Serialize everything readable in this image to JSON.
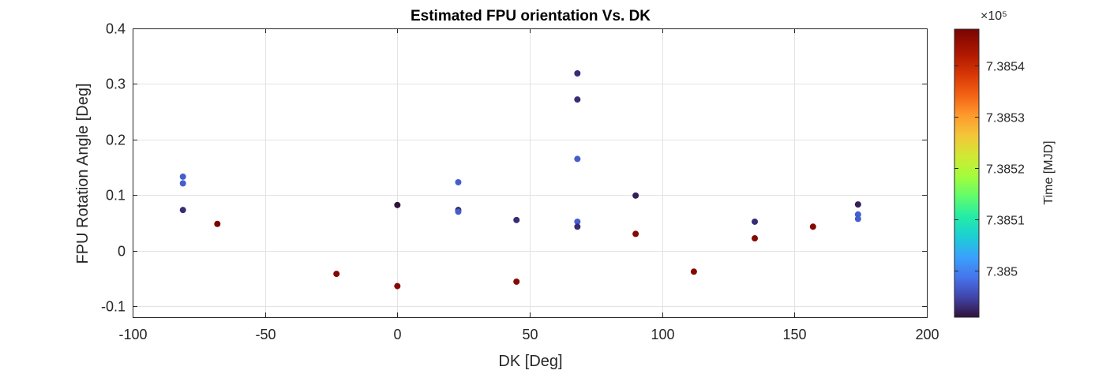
{
  "chart_data": {
    "type": "scatter",
    "title": "Estimated FPU orientation Vs. DK",
    "xlabel": "DK [Deg]",
    "ylabel": "FPU Rotation Angle [Deg]",
    "xlim": [
      -100,
      200
    ],
    "ylim": [
      -0.12,
      0.4
    ],
    "xticks": [
      -100,
      -50,
      0,
      50,
      100,
      150,
      200
    ],
    "xtick_labels": [
      "-100",
      "-50",
      "0",
      "50",
      "100",
      "150",
      "200"
    ],
    "yticks": [
      -0.1,
      0,
      0.1,
      0.2,
      0.3,
      0.4
    ],
    "ytick_labels": [
      "-0.1",
      "0",
      "0.1",
      "0.2",
      "0.3",
      "0.4"
    ],
    "grid": true,
    "colorbar": {
      "label": "Time [MJD]",
      "exponent_label": "×10⁵",
      "colormap": "turbo",
      "clim": [
        7.38491,
        7.38547
      ],
      "ticks": [
        7.385,
        7.3851,
        7.3852,
        7.3853,
        7.3854
      ],
      "tick_labels": [
        "7.385",
        "7.3851",
        "7.3852",
        "7.3853",
        "7.3854"
      ]
    },
    "points": [
      {
        "x": -81,
        "y": 0.133,
        "c": 7.38497
      },
      {
        "x": -81,
        "y": 0.121,
        "c": 7.38497
      },
      {
        "x": -81,
        "y": 0.073,
        "c": 7.38493
      },
      {
        "x": -68,
        "y": 0.048,
        "c": 7.38547
      },
      {
        "x": -23,
        "y": -0.042,
        "c": 7.38546
      },
      {
        "x": 0,
        "y": 0.082,
        "c": 7.38491
      },
      {
        "x": 0,
        "y": -0.064,
        "c": 7.38546
      },
      {
        "x": 23,
        "y": 0.123,
        "c": 7.38497
      },
      {
        "x": 23,
        "y": 0.073,
        "c": 7.38492
      },
      {
        "x": 23,
        "y": 0.07,
        "c": 7.38497
      },
      {
        "x": 45,
        "y": 0.055,
        "c": 7.38493
      },
      {
        "x": 45,
        "y": -0.056,
        "c": 7.38546
      },
      {
        "x": 68,
        "y": 0.319,
        "c": 7.38493
      },
      {
        "x": 68,
        "y": 0.272,
        "c": 7.38493
      },
      {
        "x": 68,
        "y": 0.165,
        "c": 7.38497
      },
      {
        "x": 68,
        "y": 0.052,
        "c": 7.38497
      },
      {
        "x": 68,
        "y": 0.043,
        "c": 7.38493
      },
      {
        "x": 90,
        "y": 0.099,
        "c": 7.38492
      },
      {
        "x": 90,
        "y": 0.03,
        "c": 7.38546
      },
      {
        "x": 112,
        "y": -0.038,
        "c": 7.38546
      },
      {
        "x": 135,
        "y": 0.052,
        "c": 7.38493
      },
      {
        "x": 135,
        "y": 0.022,
        "c": 7.38546
      },
      {
        "x": 157,
        "y": 0.043,
        "c": 7.38546
      },
      {
        "x": 174,
        "y": 0.083,
        "c": 7.38492
      },
      {
        "x": 174,
        "y": 0.065,
        "c": 7.38497
      },
      {
        "x": 174,
        "y": 0.057,
        "c": 7.38497
      }
    ]
  }
}
